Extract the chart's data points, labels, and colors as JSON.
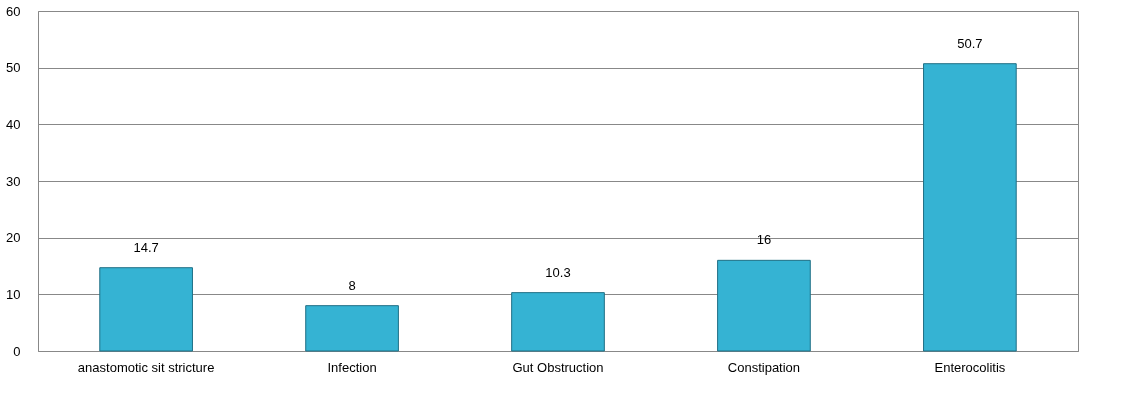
{
  "chart_data": {
    "type": "bar",
    "categories": [
      "anastomotic sit stricture",
      "Infection",
      "Gut Obstruction",
      "Constipation",
      "Enterocolitis"
    ],
    "values": [
      14.7,
      8,
      10.3,
      16,
      50.7
    ],
    "color": "#35b3d3",
    "ylim": [
      0,
      60
    ],
    "yticks": [
      0,
      10,
      20,
      30,
      40,
      50,
      60
    ],
    "grid": "y",
    "data_labels": true
  }
}
